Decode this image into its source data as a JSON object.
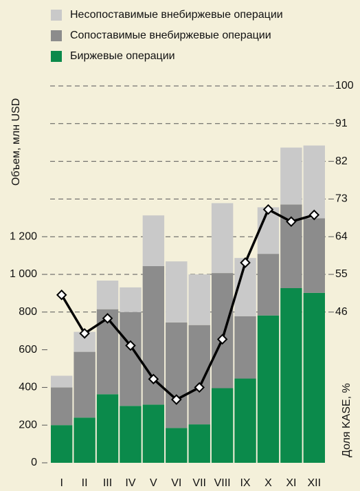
{
  "chart_data": {
    "type": "bar",
    "stacked": true,
    "ylabel": "Объем, млн USD",
    "y2label": "Доля  KASE, %",
    "categories": [
      "I",
      "II",
      "III",
      "IV",
      "V",
      "VI",
      "VII",
      "VIII",
      "IX",
      "X",
      "XI",
      "XII"
    ],
    "series": [
      {
        "name": "Биржевые операции",
        "color": "#0b8a4b",
        "values": [
          200,
          240,
          364,
          302,
          309,
          185,
          204,
          396,
          447,
          782,
          927,
          902
        ]
      },
      {
        "name": "Сопоставимые внебиржевые операции",
        "color": "#8c8c8c",
        "values": [
          200,
          349,
          451,
          498,
          735,
          560,
          527,
          611,
          331,
          327,
          444,
          396
        ]
      },
      {
        "name": "Несопоставимые внебиржевые операции",
        "color": "#c9c9c9",
        "values": [
          62,
          106,
          152,
          131,
          269,
          324,
          269,
          371,
          309,
          247,
          302,
          386
        ]
      },
      {
        "type": "line",
        "axis": "y2",
        "color": "#000000",
        "values": [
          50.1,
          40.9,
          44.5,
          38,
          30,
          25.1,
          28,
          39.5,
          57.8,
          70.5,
          67.6,
          69.2
        ]
      }
    ],
    "ylim": [
      0,
      2000
    ],
    "yticks": [
      0,
      200,
      400,
      600,
      800,
      {
        "value": 1000,
        "label": "1 000"
      },
      {
        "value": 1200,
        "label": "1 200"
      }
    ],
    "y2lim": [
      10,
      100
    ],
    "y2ticks": [
      46,
      55,
      64,
      73,
      82,
      91,
      100
    ],
    "grid": true
  }
}
